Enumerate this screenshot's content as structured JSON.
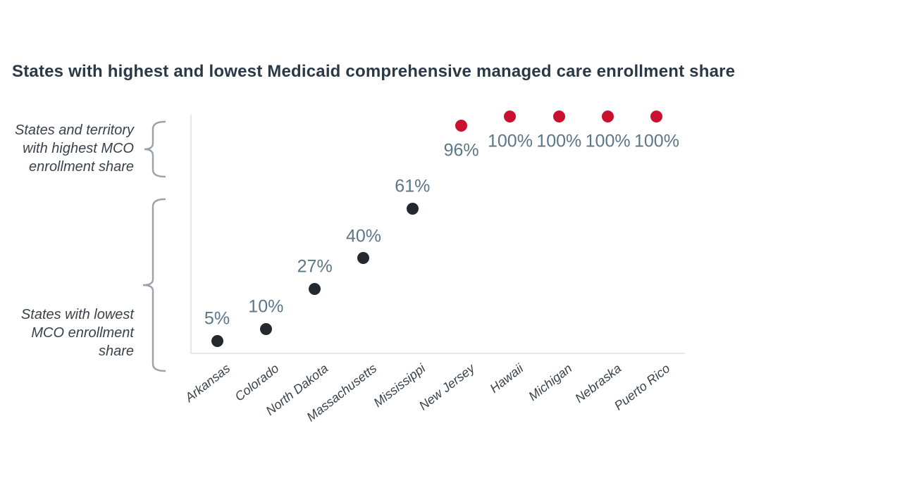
{
  "title": "States with highest and lowest Medicaid comprehensive managed care enrollment share",
  "chart_data": {
    "type": "scatter",
    "categories": [
      "Arkansas",
      "Colorado",
      "North Dakota",
      "Massachusetts",
      "Mississippi",
      "New Jersey",
      "Hawaii",
      "Michigan",
      "Nebraska",
      "Puerto Rico"
    ],
    "ylim": [
      0,
      100
    ],
    "grid": false,
    "xlabel": "",
    "ylabel": "",
    "series": [
      {
        "name": "States with lowest MCO enrollment share",
        "color": "#23292F",
        "categories": [
          "Arkansas",
          "Colorado",
          "North Dakota",
          "Massachusetts",
          "Mississippi"
        ],
        "values": [
          5,
          10,
          27,
          40,
          61
        ],
        "labels": [
          "5%",
          "10%",
          "27%",
          "40%",
          "61%"
        ],
        "label_position": "above"
      },
      {
        "name": "States and territory with highest MCO enrollment share",
        "color": "#C9112F",
        "categories": [
          "New Jersey",
          "Hawaii",
          "Michigan",
          "Nebraska",
          "Puerto Rico"
        ],
        "values": [
          96,
          100,
          100,
          100,
          100
        ],
        "labels": [
          "96%",
          "100%",
          "100%",
          "100%",
          "100%"
        ],
        "label_position": "below"
      }
    ]
  },
  "annotations": {
    "highest": {
      "lines": [
        "States and territory",
        "with highest MCO",
        "enrollment share"
      ]
    },
    "lowest": {
      "lines": [
        "States with lowest",
        "MCO enrollment",
        "share"
      ]
    }
  },
  "colors": {
    "title_text": "#2B3947",
    "value_label_text": "#5C7689",
    "axis_tick_text": "#39434C",
    "annotation_text": "#39424B",
    "brace": "#9AA2A9",
    "axis_line": "#E7E9EB",
    "dot_lowest": "#23292F",
    "dot_highest": "#C9112F",
    "background": "#FFFFFF"
  }
}
